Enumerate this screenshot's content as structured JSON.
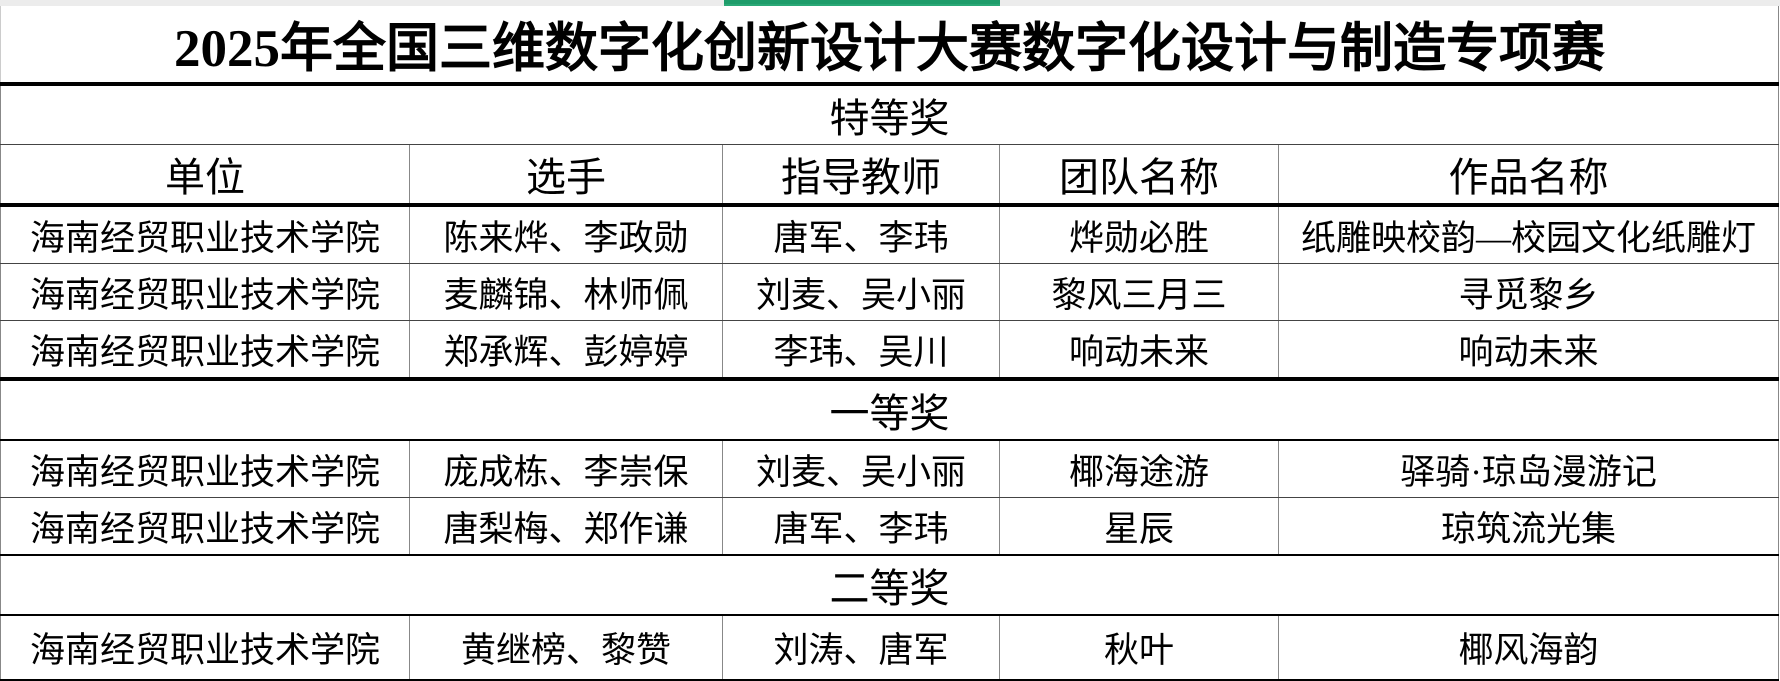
{
  "title": "2025年全国三维数字化创新设计大赛数字化设计与制造专项赛",
  "headers": [
    "单位",
    "选手",
    "指导教师",
    "团队名称",
    "作品名称"
  ],
  "sections": [
    {
      "award": "特等奖",
      "rows": [
        [
          "海南经贸职业技术学院",
          "陈来烨、李政勋",
          "唐军、李玮",
          "烨勋必胜",
          "纸雕映校韵—校园文化纸雕灯"
        ],
        [
          "海南经贸职业技术学院",
          "麦麟锦、林师佩",
          "刘麦、吴小丽",
          "黎风三月三",
          "寻觅黎乡"
        ],
        [
          "海南经贸职业技术学院",
          "郑承辉、彭婷婷",
          "李玮、吴川",
          "响动未来",
          "响动未来"
        ]
      ]
    },
    {
      "award": "一等奖",
      "rows": [
        [
          "海南经贸职业技术学院",
          "庞成栋、李崇保",
          "刘麦、吴小丽",
          "椰海途游",
          "驿骑·琼岛漫游记"
        ],
        [
          "海南经贸职业技术学院",
          "唐梨梅、郑作谦",
          "唐军、李玮",
          "星辰",
          "琼筑流光集"
        ]
      ]
    },
    {
      "award": "二等奖",
      "rows": [
        [
          "海南经贸职业技术学院",
          "黄继榜、黎赞",
          "刘涛、唐军",
          "秋叶",
          "椰风海韵"
        ]
      ]
    }
  ],
  "colors": {
    "active_sheet_tab": "#1e9c6a"
  }
}
